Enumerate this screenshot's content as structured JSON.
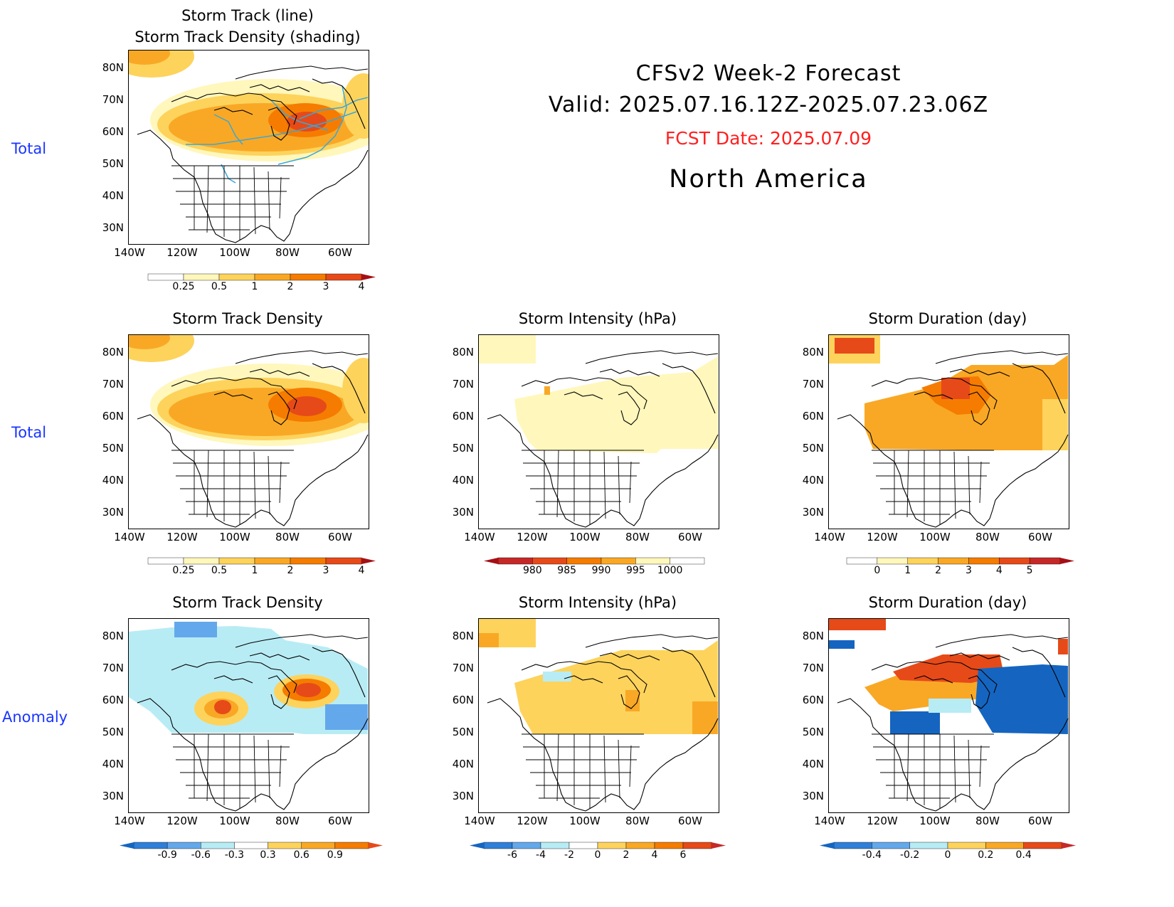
{
  "header": {
    "line1": "CFSv2 Week-2 Forecast",
    "line2": "Valid: 2025.07.16.12Z-2025.07.23.06Z",
    "fcst": "FCST Date: 2025.07.09",
    "region": "North America",
    "fcst_color": "#ff2020"
  },
  "rows": {
    "total1": "Total",
    "total2": "Total",
    "anomaly": "Anomaly"
  },
  "panels": {
    "p1": {
      "title1": "Storm Track (line)",
      "title2": "Storm Track Density (shading)"
    },
    "p2": {
      "title": "Storm Track Density"
    },
    "p3": {
      "title": "Storm Intensity (hPa)"
    },
    "p4": {
      "title": "Storm Duration (day)"
    },
    "p5": {
      "title": "Storm Track Density"
    },
    "p6": {
      "title": "Storm Intensity (hPa)"
    },
    "p7": {
      "title": "Storm Duration (day)"
    }
  },
  "axes": {
    "lat_labels": [
      "80N",
      "70N",
      "60N",
      "50N",
      "40N",
      "30N"
    ],
    "lon_labels": [
      "140W",
      "120W",
      "100W",
      "80W",
      "60W"
    ]
  },
  "colorbars": {
    "density_total": [
      "0.25",
      "0.5",
      "1",
      "2",
      "3",
      "4"
    ],
    "intensity_total": [
      "980",
      "985",
      "990",
      "995",
      "1000"
    ],
    "duration_total": [
      "0",
      "1",
      "2",
      "3",
      "4",
      "5"
    ],
    "density_anom": [
      "-0.9",
      "-0.6",
      "-0.3",
      "0.3",
      "0.6",
      "0.9"
    ],
    "intensity_anom": [
      "-6",
      "-4",
      "-2",
      "0",
      "2",
      "4",
      "6"
    ],
    "duration_anom": [
      "-0.4",
      "-0.2",
      "0",
      "0.2",
      "0.4"
    ]
  },
  "palette": {
    "warm": [
      "#fff7bc",
      "#fdd35c",
      "#f9a825",
      "#f57c00",
      "#e64a19",
      "#c62828"
    ],
    "cool": [
      "#1565c0",
      "#2f7fd8",
      "#64a8ec",
      "#b8ecf5"
    ],
    "track_line": "#3aa7d9"
  }
}
